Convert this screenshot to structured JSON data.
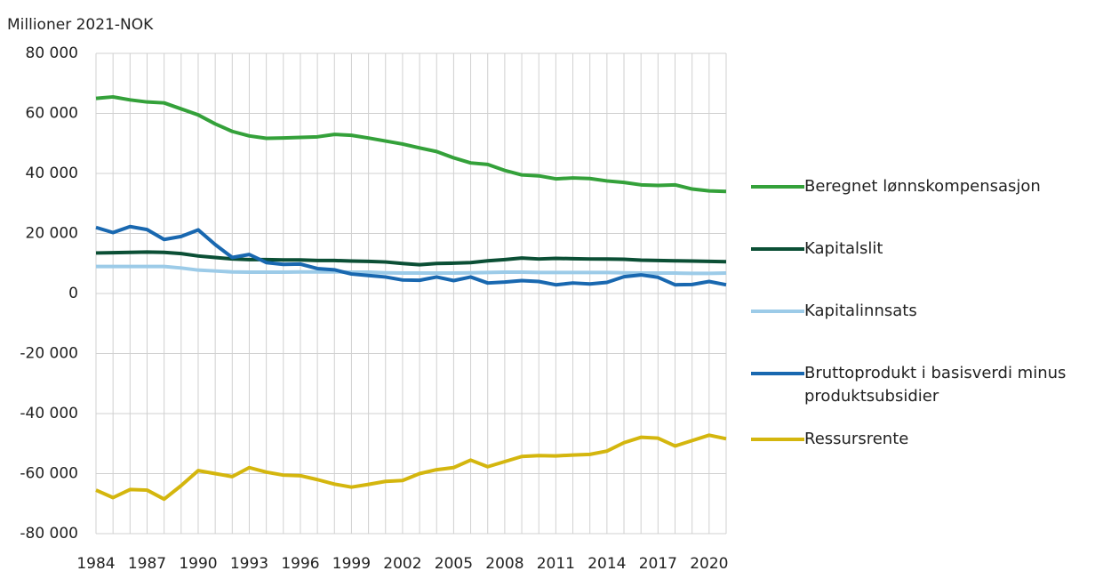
{
  "chart_data": {
    "type": "line",
    "y_axis_label": "Millioner 2021-NOK",
    "categories": [
      "1984",
      null,
      null,
      "1987",
      null,
      null,
      "1990",
      null,
      null,
      "1993",
      null,
      null,
      "1996",
      null,
      null,
      "1999",
      null,
      null,
      "2002",
      null,
      null,
      "2005",
      null,
      null,
      "2008",
      null,
      null,
      "2011",
      null,
      null,
      "2014",
      null,
      null,
      "2017",
      null,
      null,
      "2020",
      null
    ],
    "ylim": [
      -80000,
      80000
    ],
    "yticks": [
      {
        "value": -80000,
        "label": "-80 000"
      },
      {
        "value": -60000,
        "label": "-60 000"
      },
      {
        "value": -40000,
        "label": "-40 000"
      },
      {
        "value": -20000,
        "label": "-20 000"
      },
      0,
      {
        "value": 20000,
        "label": "20 000"
      },
      {
        "value": 40000,
        "label": "40 000"
      },
      {
        "value": 60000,
        "label": "60 000"
      },
      {
        "value": 80000,
        "label": "80 000"
      }
    ],
    "grid": true,
    "legend": "right",
    "series": [
      {
        "name": "Beregnet lønnskompensasjon",
        "color": "#34a13a",
        "values": [
          65000,
          65500,
          64500,
          63800,
          63500,
          61500,
          59500,
          56500,
          54000,
          52500,
          51700,
          51800,
          52000,
          52200,
          53000,
          52700,
          51800,
          50800,
          49800,
          48500,
          47300,
          45200,
          43500,
          43000,
          41000,
          39500,
          39200,
          38200,
          38500,
          38300,
          37500,
          37000,
          36200,
          36000,
          36200,
          34800,
          34200,
          34000
        ]
      },
      {
        "name": "Kapitalslit",
        "color": "#0b4f35",
        "values": [
          13500,
          13600,
          13700,
          13800,
          13700,
          13300,
          12500,
          12000,
          11500,
          11300,
          11300,
          11200,
          11200,
          11000,
          11000,
          10800,
          10700,
          10500,
          10000,
          9600,
          10000,
          10100,
          10300,
          10900,
          11300,
          11800,
          11500,
          11700,
          11600,
          11500,
          11500,
          11400,
          11100,
          11000,
          10900,
          10800,
          10700,
          10600
        ]
      },
      {
        "name": "Kapitalinnsats",
        "color": "#9ccbe8",
        "values": [
          9000,
          9000,
          9000,
          9000,
          9000,
          8500,
          7800,
          7500,
          7200,
          7100,
          7100,
          7100,
          7200,
          7200,
          7200,
          7100,
          7100,
          6900,
          6800,
          6800,
          6800,
          6800,
          6900,
          7000,
          7100,
          7100,
          7000,
          7000,
          7000,
          7000,
          7000,
          6900,
          6800,
          6800,
          6800,
          6700,
          6700,
          6800
        ]
      },
      {
        "name": "Bruttoprodukt i basisverdi minus produktsubsidier",
        "color": "#1968b0",
        "values": [
          22000,
          20300,
          22300,
          21300,
          18000,
          19000,
          21200,
          16300,
          12000,
          13000,
          10300,
          9700,
          9800,
          8300,
          7900,
          6500,
          6000,
          5500,
          4500,
          4400,
          5500,
          4300,
          5500,
          3500,
          3800,
          4300,
          4000,
          2900,
          3500,
          3200,
          3700,
          5600,
          6200,
          5400,
          2900,
          3000,
          4000,
          2900
        ]
      },
      {
        "name": "Ressursrente",
        "color": "#d4b60e",
        "values": [
          -65500,
          -68000,
          -65300,
          -65500,
          -68500,
          -64000,
          -59000,
          -60000,
          -61000,
          -58000,
          -59500,
          -60500,
          -60700,
          -62000,
          -63500,
          -64500,
          -63600,
          -62600,
          -62300,
          -60000,
          -58700,
          -58000,
          -55500,
          -57700,
          -56000,
          -54300,
          -54000,
          -54100,
          -53800,
          -53600,
          -52500,
          -49700,
          -47900,
          -48200,
          -50800,
          -49000,
          -47200,
          -48400
        ]
      }
    ]
  }
}
